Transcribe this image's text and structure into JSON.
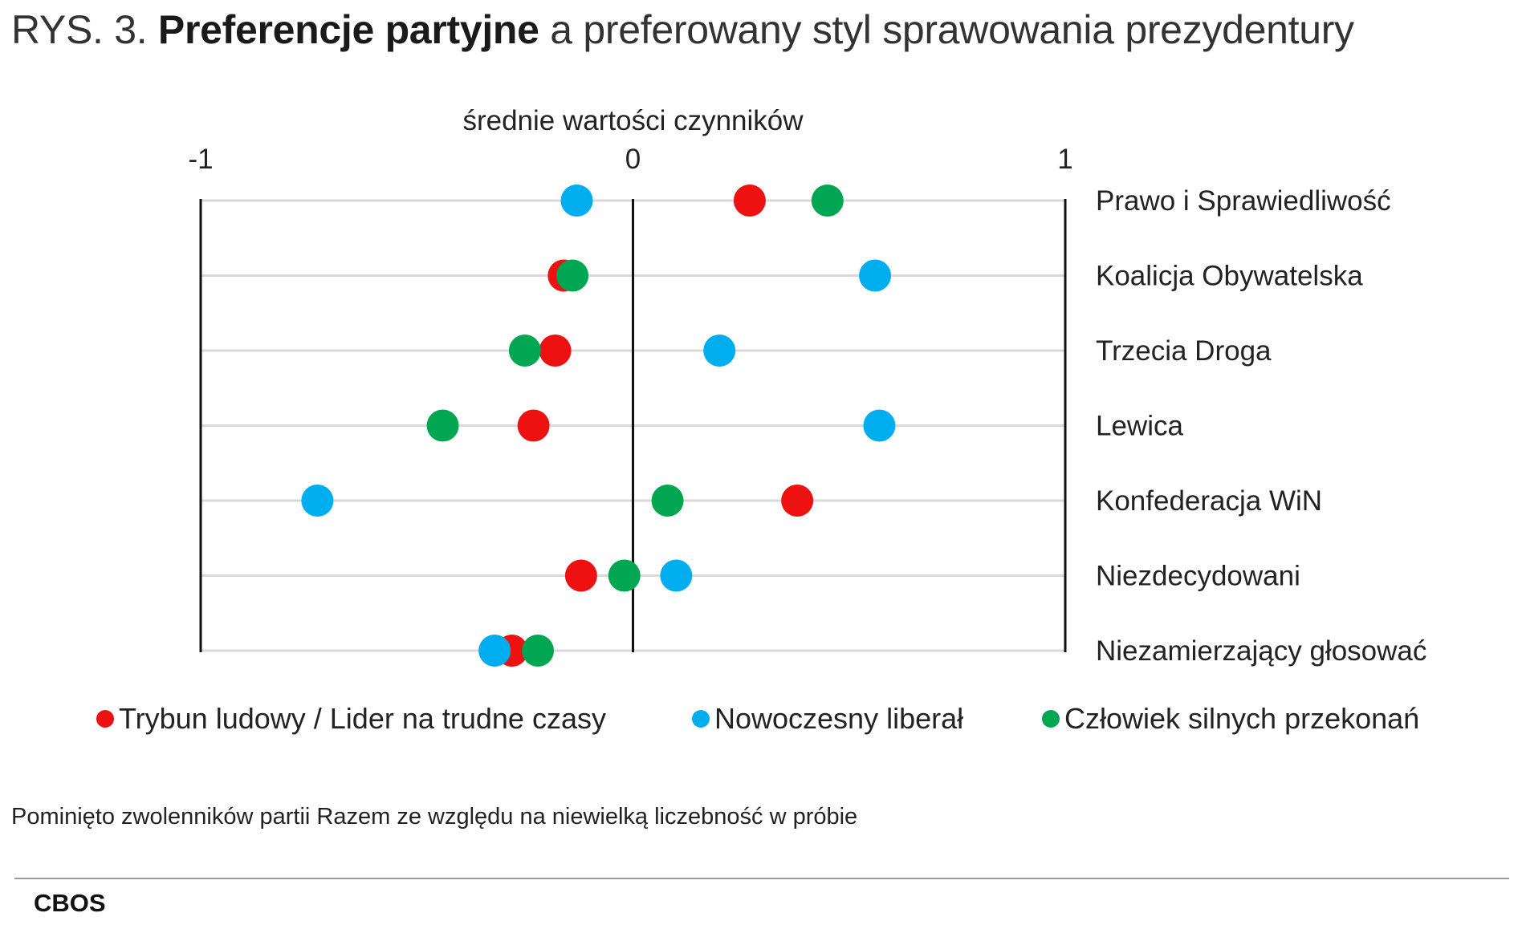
{
  "title": {
    "prefix": "RYS. 3.",
    "bold": "Preferencje partyjne",
    "rest": "a preferowany styl sprawowania prezydentury"
  },
  "chart_data": {
    "type": "scatter",
    "xlabel": "średnie wartości czynników",
    "xlim": [
      -1,
      1
    ],
    "xticks": [
      "-1",
      "0",
      "1"
    ],
    "categories": [
      "Prawo i Sprawiedliwość",
      "Koalicja Obywatelska",
      "Trzecia Droga",
      "Lewica",
      "Konfederacja WiN",
      "Niezdecydowani",
      "Niezamierzający głosować"
    ],
    "series": [
      {
        "name": "Trybun ludowy / Lider na trudne czasy",
        "color": "#ee1111",
        "values": [
          0.27,
          -0.16,
          -0.18,
          -0.23,
          0.38,
          -0.12,
          -0.28
        ]
      },
      {
        "name": "Nowoczesny liberał",
        "color": "#00adef",
        "values": [
          -0.13,
          0.56,
          0.2,
          0.57,
          -0.73,
          0.1,
          -0.32
        ]
      },
      {
        "name": "Człowiek silnych przekonań",
        "color": "#00a651",
        "values": [
          0.45,
          -0.14,
          -0.25,
          -0.44,
          0.08,
          -0.02,
          -0.22
        ]
      }
    ],
    "grid": true,
    "legend_position": "bottom"
  },
  "footnote": "Pominięto zwolenników partii Razem ze względu na niewielką liczebność w próbie",
  "source": "CBOS"
}
